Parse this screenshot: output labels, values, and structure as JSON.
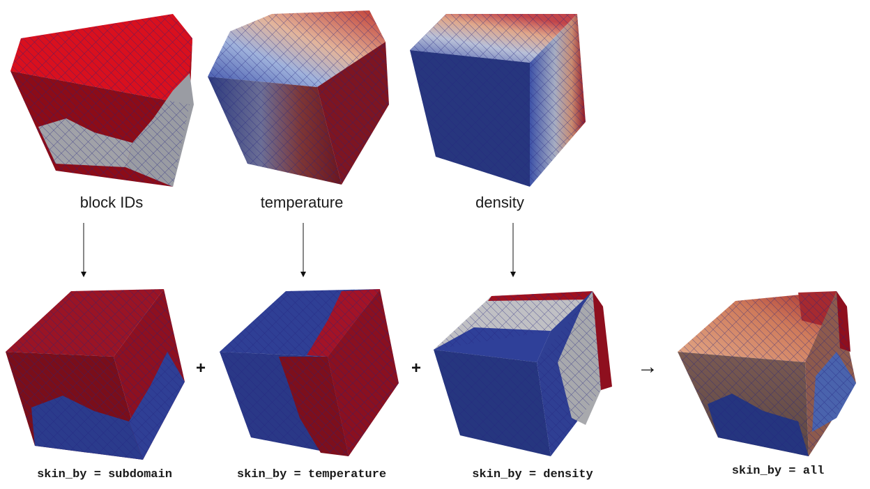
{
  "top_labels": [
    "block IDs",
    "temperature",
    "density"
  ],
  "bottom_labels": [
    "skin_by = subdomain",
    "skin_by = temperature",
    "skin_by = density",
    "skin_by = all"
  ],
  "operators": {
    "plus": "+",
    "result_arrow": "→"
  },
  "colors": {
    "red": "#d6101e",
    "dark_red": "#8a0f1c",
    "grey": "#9ea0a6",
    "light_grey": "#c3c3c6",
    "blue": "#2e3f91",
    "dark_blue": "#1e2a6b",
    "salmon": "#d88e6e",
    "mesh_line": "#2a2a8a"
  }
}
